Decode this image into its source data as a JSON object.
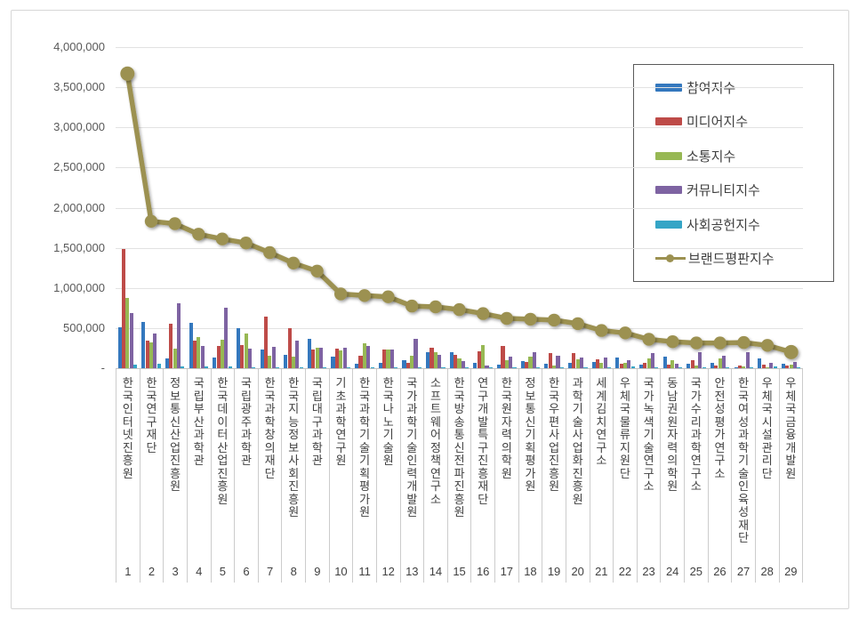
{
  "chart_data": {
    "type": "bar+line",
    "title": "",
    "legend_position": "right-top-overlay",
    "grid": true,
    "categories": [
      "한국인터넷진흥원",
      "한국연구재단",
      "정보통신산업진흥원",
      "국립부산과학관",
      "한국데이터산업진흥원",
      "국립광주과학관",
      "한국과학창의재단",
      "한국지능정보사회진흥원",
      "국립대구과학관",
      "기초과학연구원",
      "한국과학기술기획평가원",
      "한국나노기술원",
      "국가과학기술인력개발원",
      "소프트웨어정책연구소",
      "한국방송통신전파진흥원",
      "연구개발특구진흥재단",
      "한국원자력의학원",
      "정보통신기획평가원",
      "한국우편사업진흥원",
      "과학기술사업화진흥원",
      "세계김치연구소",
      "우체국물류지원단",
      "국가녹색기술연구소",
      "동남권원자력의학원",
      "국가수리과학연구소",
      "안전성평가연구소",
      "한국여성과학기술인육성재단",
      "우체국시설관리단",
      "우체국금융개발원"
    ],
    "category_numbers": [
      "1",
      "2",
      "3",
      "4",
      "5",
      "6",
      "7",
      "8",
      "9",
      "10",
      "11",
      "12",
      "13",
      "14",
      "15",
      "16",
      "17",
      "18",
      "19",
      "20",
      "21",
      "22",
      "23",
      "24",
      "25",
      "26",
      "27",
      "28",
      "29"
    ],
    "series": [
      {
        "name": "참여지수",
        "type": "bar",
        "color": "#3478BE",
        "values": [
          510000,
          575000,
          120000,
          565000,
          135000,
          500000,
          235000,
          165000,
          365000,
          145000,
          50000,
          65000,
          100000,
          195000,
          195000,
          70000,
          45000,
          85000,
          55000,
          65000,
          80000,
          135000,
          45000,
          145000,
          55000,
          70000,
          15000,
          120000,
          60000
        ]
      },
      {
        "name": "미디어지수",
        "type": "bar",
        "color": "#BE4B48",
        "values": [
          1480000,
          340000,
          550000,
          345000,
          275000,
          290000,
          645000,
          500000,
          230000,
          240000,
          155000,
          235000,
          65000,
          250000,
          165000,
          215000,
          275000,
          80000,
          190000,
          185000,
          115000,
          55000,
          70000,
          45000,
          100000,
          35000,
          35000,
          40000,
          30000
        ]
      },
      {
        "name": "소통지수",
        "type": "bar",
        "color": "#97B854",
        "values": [
          880000,
          320000,
          245000,
          385000,
          350000,
          430000,
          160000,
          145000,
          260000,
          220000,
          310000,
          235000,
          150000,
          195000,
          120000,
          290000,
          100000,
          145000,
          30000,
          110000,
          65000,
          70000,
          120000,
          100000,
          35000,
          120000,
          25000,
          15000,
          45000
        ]
      },
      {
        "name": "커뮤니티지수",
        "type": "bar",
        "color": "#7E63A2",
        "values": [
          690000,
          430000,
          810000,
          275000,
          755000,
          240000,
          265000,
          345000,
          250000,
          250000,
          280000,
          230000,
          370000,
          165000,
          85000,
          35000,
          145000,
          195000,
          160000,
          135000,
          130000,
          100000,
          185000,
          60000,
          195000,
          150000,
          195000,
          70000,
          75000
        ]
      },
      {
        "name": "사회공헌지수",
        "type": "bar",
        "color": "#35A5C6",
        "values": [
          40000,
          60000,
          25000,
          20000,
          20000,
          15000,
          10000,
          10000,
          12000,
          12000,
          10000,
          10000,
          10000,
          15000,
          15000,
          10000,
          10000,
          10000,
          10000,
          10000,
          10000,
          25000,
          10000,
          10000,
          10000,
          12000,
          8000,
          25000,
          12000
        ]
      },
      {
        "name": "브랜드평판지수",
        "type": "line",
        "color": "#9C9151",
        "values": [
          3670000,
          1830000,
          1800000,
          1670000,
          1610000,
          1560000,
          1440000,
          1310000,
          1210000,
          925000,
          905000,
          890000,
          775000,
          765000,
          730000,
          680000,
          620000,
          610000,
          600000,
          555000,
          470000,
          440000,
          360000,
          330000,
          315000,
          315000,
          320000,
          285000,
          200000
        ]
      }
    ],
    "y_axis": {
      "min": 0,
      "max": 4000000,
      "tick_interval": 500000,
      "tick_labels": [
        "4,000,000",
        "3,500,000",
        "3,000,000",
        "2,500,000",
        "2,000,000",
        "1,500,000",
        "1,000,000",
        "500,000",
        "-"
      ]
    }
  }
}
